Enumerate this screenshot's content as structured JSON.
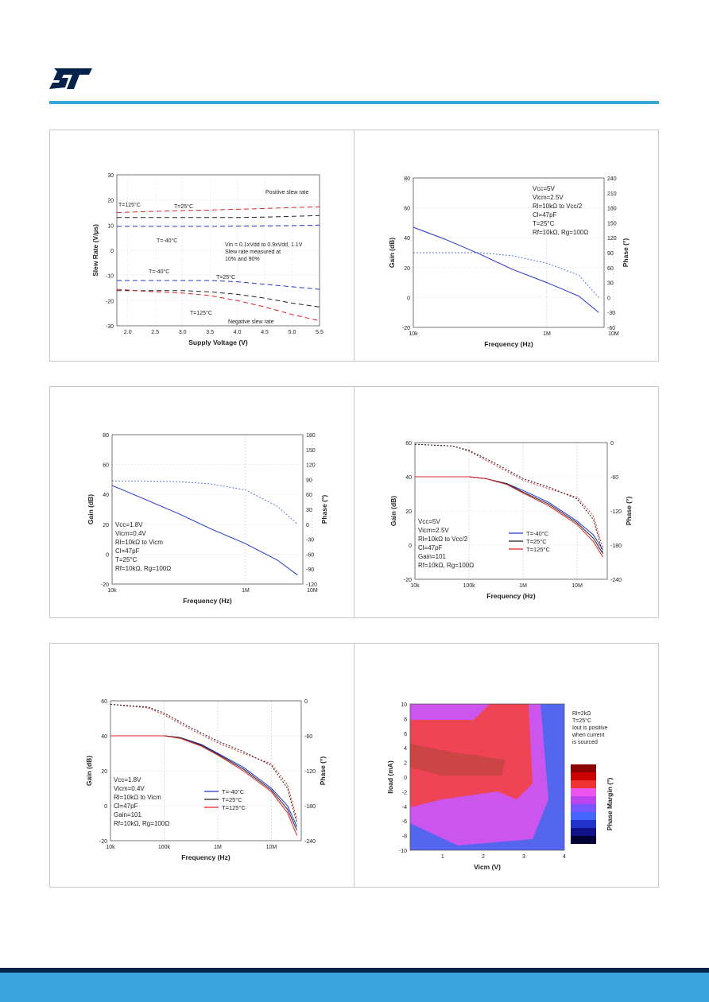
{
  "brand": {
    "logo": "ST logo",
    "accent": "#3aa5dc",
    "dark": "#03234b"
  },
  "charts": [
    {
      "type": "line",
      "xlabel": "Supply Voltage (V)",
      "ylabel": "Slew Rate (V/µs)",
      "xlim": [
        1.8,
        5.5
      ],
      "ylim": [
        -30,
        30
      ],
      "xticks": [
        "2.0",
        "2.5",
        "3.0",
        "3.5",
        "4.0",
        "4.5",
        "5.0",
        "5.5"
      ],
      "yticks": [
        "30",
        "20",
        "10",
        "0",
        "-10",
        "-20",
        "-30"
      ],
      "annotations": [
        "Positive slew rate",
        "T=125°C",
        "T=25°C",
        "T=-40°C",
        "Vin = 0.1xVdd to 0.9xVdd, 1.1V",
        "Slew rate measured at",
        "10% and 90%",
        "T=-40°C",
        "T=25°C",
        "T=125°C",
        "Negative slew rate"
      ],
      "series": [
        {
          "color": "#e02020",
          "x": [
            1.8,
            2.5,
            3.0,
            3.5,
            4.0,
            4.5,
            5.0,
            5.5
          ],
          "y": [
            15,
            15.5,
            15.8,
            16,
            16.3,
            16.6,
            17,
            17.3
          ]
        },
        {
          "color": "#222222",
          "x": [
            1.8,
            2.5,
            3.0,
            3.5,
            4.0,
            4.5,
            5.0,
            5.5
          ],
          "y": [
            13,
            13,
            13,
            13,
            13,
            13.2,
            13.5,
            13.8
          ]
        },
        {
          "color": "#2233cc",
          "x": [
            1.8,
            2.5,
            3.0,
            3.5,
            4.0,
            4.5,
            5.0,
            5.5
          ],
          "y": [
            9.5,
            9.5,
            9.5,
            9.5,
            9.6,
            9.7,
            9.8,
            10
          ]
        },
        {
          "color": "#2233cc",
          "x": [
            1.8,
            2.5,
            3.0,
            3.5,
            4.0,
            4.5,
            5.0,
            5.5
          ],
          "y": [
            -12,
            -12,
            -12,
            -12,
            -12.5,
            -13.5,
            -14.5,
            -15.5
          ]
        },
        {
          "color": "#222222",
          "x": [
            1.8,
            2.5,
            3.0,
            3.5,
            4.0,
            4.5,
            5.0,
            5.5
          ],
          "y": [
            -16,
            -16,
            -16,
            -16.5,
            -17.5,
            -19,
            -21,
            -22.5
          ]
        },
        {
          "color": "#e02020",
          "x": [
            1.8,
            2.5,
            3.0,
            3.5,
            4.0,
            4.5,
            5.0,
            5.5
          ],
          "y": [
            -15.5,
            -16.5,
            -17,
            -18,
            -20,
            -22.5,
            -25.5,
            -28
          ]
        }
      ]
    },
    {
      "type": "line",
      "xlabel": "Frequency (Hz)",
      "ylabel": "Gain (dB)",
      "y2label": "Phase (°)",
      "xscale": "log",
      "ylim": [
        -20,
        80
      ],
      "y2lim": [
        -60,
        240
      ],
      "xticks": [
        "10k",
        "1M",
        "10M"
      ],
      "yticks": [
        "80",
        "60",
        "40",
        "20",
        "0",
        "-20"
      ],
      "y2ticks": [
        "240",
        "210",
        "180",
        "150",
        "120",
        "90",
        "60",
        "30",
        "0",
        "-30",
        "-60"
      ],
      "annotations": [
        "Vcc=5V",
        "Vicm=2.5V",
        "Rl=10kΩ to Vcc/2",
        "Cl=47pF",
        "T=25°C",
        "Rf=10kΩ, Rg=100Ω"
      ],
      "series": [
        {
          "color": "#2233cc",
          "x": [
            10000,
            30000,
            100000,
            300000,
            1000000,
            3000000,
            6000000
          ],
          "y": [
            47,
            39,
            29,
            19,
            10,
            1,
            -10
          ]
        },
        {
          "color": "#5577dd",
          "dash": "2,2",
          "x": [
            10000,
            30000,
            100000,
            300000,
            1000000,
            3000000,
            6000000
          ],
          "y": [
            30,
            30,
            30,
            28,
            23,
            15,
            0
          ]
        }
      ]
    },
    {
      "type": "line",
      "xlabel": "Frequency (Hz)",
      "ylabel": "Gain (dB)",
      "y2label": "Phase (°)",
      "xscale": "log",
      "ylim": [
        -20,
        80
      ],
      "y2lim": [
        -120,
        180
      ],
      "xticks": [
        "10k",
        "1M",
        "10M"
      ],
      "yticks": [
        "80",
        "60",
        "40",
        "20",
        "0",
        "-20"
      ],
      "y2ticks": [
        "180",
        "150",
        "120",
        "90",
        "60",
        "30",
        "0",
        "-30",
        "-60",
        "-90",
        "-120"
      ],
      "annotations": [
        "Vcc=1.8V",
        "Vicm=0.4V",
        "Rl=10kΩ to Vicm",
        "Cl=47pF",
        "T=25°C",
        "Rf=10kΩ, Rg=100Ω"
      ],
      "series": [
        {
          "color": "#2233cc",
          "x": [
            10000,
            30000,
            100000,
            300000,
            1000000,
            3000000,
            6000000
          ],
          "y": [
            46,
            37,
            27,
            17,
            7,
            -4,
            -14
          ]
        },
        {
          "color": "#5577dd",
          "dash": "2,2",
          "x": [
            10000,
            30000,
            100000,
            300000,
            1000000,
            3000000,
            6000000
          ],
          "y": [
            49,
            49,
            48.5,
            47,
            43,
            32,
            20
          ]
        }
      ]
    },
    {
      "type": "line",
      "xlabel": "Frequency (Hz)",
      "ylabel": "Gain (dB)",
      "y2label": "Phase (°)",
      "xscale": "log",
      "ylim": [
        -20,
        60
      ],
      "y2lim": [
        -240,
        0
      ],
      "xticks": [
        "10k",
        "100k",
        "1M",
        "10M"
      ],
      "yticks": [
        "60",
        "40",
        "20",
        "0",
        "-20"
      ],
      "y2ticks": [
        "0",
        "-60",
        "-120",
        "-180",
        "-240"
      ],
      "annotations": [
        "Vcc=5V",
        "Vicm=2.5V",
        "Rl=10kΩ to Vcc/2",
        "Cl=47pF",
        "Gain=101",
        "Rf=10kΩ, Rg=100Ω"
      ],
      "legend": [
        "T=-40°C",
        "T=25°C",
        "T=125°C"
      ],
      "series": [
        {
          "name": "T=-40°C",
          "color": "#2233cc",
          "x": [
            10000,
            100000,
            200000,
            500000,
            1000000,
            3000000,
            10000000,
            20000000,
            30000000
          ],
          "y": [
            40,
            40,
            39,
            36,
            32,
            25,
            14,
            6,
            -3
          ]
        },
        {
          "name": "T=25°C",
          "color": "#222222",
          "x": [
            10000,
            100000,
            200000,
            500000,
            1000000,
            3000000,
            10000000,
            20000000,
            30000000
          ],
          "y": [
            40,
            40,
            39,
            36,
            31,
            24,
            13,
            4,
            -5
          ]
        },
        {
          "name": "T=125°C",
          "color": "#e02020",
          "x": [
            10000,
            100000,
            200000,
            500000,
            1000000,
            3000000,
            10000000,
            20000000,
            30000000
          ],
          "y": [
            40,
            40,
            39,
            35.5,
            30.5,
            23,
            12,
            2,
            -7
          ]
        },
        {
          "color": "#e02020",
          "dash": "2,2",
          "x": [
            10000,
            50000,
            100000,
            300000,
            1000000,
            3000000,
            10000000,
            20000000,
            30000000
          ],
          "y": [
            59,
            58,
            55,
            47,
            38,
            33,
            28,
            17,
            -2
          ]
        },
        {
          "color": "#222222",
          "dash": "2,2",
          "x": [
            10000,
            50000,
            100000,
            300000,
            1000000,
            3000000,
            10000000,
            20000000,
            30000000
          ],
          "y": [
            59,
            58,
            55.5,
            48,
            39,
            34,
            27,
            15,
            -5
          ]
        }
      ]
    },
    {
      "type": "line",
      "xlabel": "Frequency (Hz)",
      "ylabel": "Gain (dB)",
      "y2label": "Phase (°)",
      "xscale": "log",
      "ylim": [
        -20,
        60
      ],
      "y2lim": [
        -240,
        0
      ],
      "xticks": [
        "10k",
        "100k",
        "1M",
        "10M"
      ],
      "yticks": [
        "60",
        "40",
        "20",
        "0",
        "-20"
      ],
      "y2ticks": [
        "0",
        "-60",
        "-120",
        "-180",
        "-240"
      ],
      "annotations": [
        "Vcc=1.8V",
        "Vicm=0.4V",
        "Rl=10kΩ to Vicm",
        "Cl=47pF",
        "Gain=101",
        "Rf=10kΩ, Rg=100Ω"
      ],
      "legend": [
        "T=-40°C",
        "T=25°C",
        "T=125°C"
      ],
      "series": [
        {
          "name": "T=-40°C",
          "color": "#2233cc",
          "x": [
            10000,
            100000,
            200000,
            500000,
            1000000,
            3000000,
            10000000,
            20000000,
            30000000
          ],
          "y": [
            40,
            40,
            39,
            35,
            30,
            22,
            10,
            0,
            -12
          ]
        },
        {
          "name": "T=25°C",
          "color": "#222222",
          "x": [
            10000,
            100000,
            200000,
            500000,
            1000000,
            3000000,
            10000000,
            20000000,
            30000000
          ],
          "y": [
            40,
            40,
            39,
            34.5,
            29.5,
            21,
            9,
            -2,
            -14
          ]
        },
        {
          "name": "T=125°C",
          "color": "#e02020",
          "x": [
            10000,
            100000,
            200000,
            500000,
            1000000,
            3000000,
            10000000,
            20000000,
            30000000
          ],
          "y": [
            40,
            40,
            38.5,
            34,
            29,
            20,
            8,
            -4,
            -17
          ]
        },
        {
          "color": "#e02020",
          "dash": "2,2",
          "x": [
            10000,
            50000,
            100000,
            300000,
            1000000,
            3000000,
            10000000,
            20000000,
            30000000
          ],
          "y": [
            58,
            56,
            52,
            44,
            36,
            30,
            24,
            12,
            -8
          ]
        },
        {
          "color": "#222222",
          "dash": "2,2",
          "x": [
            10000,
            50000,
            100000,
            300000,
            1000000,
            3000000,
            10000000,
            20000000,
            30000000
          ],
          "y": [
            58,
            56.5,
            53,
            45,
            37,
            31,
            23,
            10,
            -10
          ]
        }
      ]
    },
    {
      "type": "heatmap",
      "xlabel": "Vicm (V)",
      "ylabel": "Iload (mA)",
      "colorbar_label": "Phase Margin (°)",
      "xlim": [
        0.2,
        4
      ],
      "ylim": [
        -10,
        10
      ],
      "xticks": [
        "1",
        "2",
        "3",
        "4"
      ],
      "yticks": [
        "10",
        "8",
        "6",
        "4",
        "2",
        "0",
        "-2",
        "-4",
        "-6",
        "-8",
        "-10"
      ],
      "annotations": [
        "Rl=2kΩ",
        "T=25°C",
        "Iout is positive",
        "when current",
        "is sourced"
      ],
      "colorbar_colors": [
        "#8b0000",
        "#cc0000",
        "#ee3333",
        "#ee55ee",
        "#bb44ee",
        "#7755ff",
        "#4466ff",
        "#2233cc",
        "#111188",
        "#000033"
      ]
    }
  ]
}
